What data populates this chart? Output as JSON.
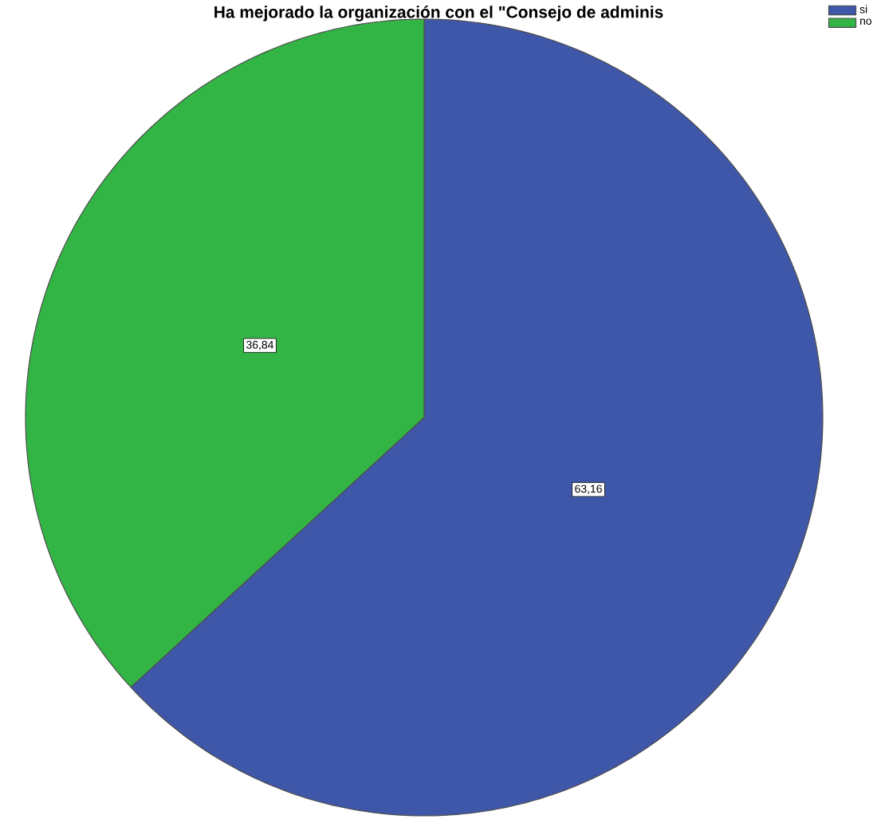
{
  "chart_data": {
    "type": "pie",
    "title": "Ha mejorado la organización con el \"Consejo de adminis",
    "categories": [
      "si",
      "no"
    ],
    "values": [
      63.16,
      36.84
    ],
    "colors": [
      "#3f57a9",
      "#33b545"
    ],
    "value_labels": [
      "63,16",
      "36,84"
    ],
    "legend": "top right"
  }
}
